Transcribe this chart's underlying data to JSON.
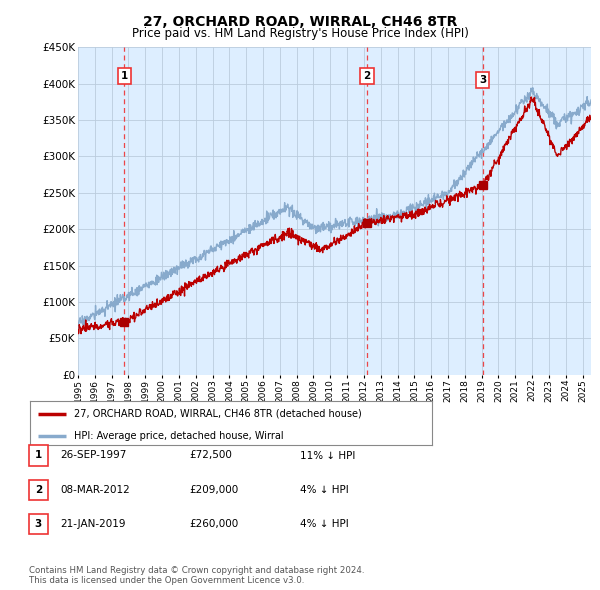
{
  "title": "27, ORCHARD ROAD, WIRRAL, CH46 8TR",
  "subtitle": "Price paid vs. HM Land Registry's House Price Index (HPI)",
  "ylim": [
    0,
    450000
  ],
  "yticks": [
    0,
    50000,
    100000,
    150000,
    200000,
    250000,
    300000,
    350000,
    400000,
    450000
  ],
  "ytick_labels": [
    "£0",
    "£50K",
    "£100K",
    "£150K",
    "£200K",
    "£250K",
    "£300K",
    "£350K",
    "£400K",
    "£450K"
  ],
  "sale_dates_decimal": [
    1997.74,
    2012.18,
    2019.06
  ],
  "sale_prices": [
    72500,
    209000,
    260000
  ],
  "sale_labels": [
    "1",
    "2",
    "3"
  ],
  "vline_color": "#ee3333",
  "dot_color": "#aa0000",
  "line_color_red": "#bb0000",
  "line_color_blue": "#88aacc",
  "chart_bg": "#ddeeff",
  "legend_label_red": "27, ORCHARD ROAD, WIRRAL, CH46 8TR (detached house)",
  "legend_label_blue": "HPI: Average price, detached house, Wirral",
  "table_entries": [
    {
      "label": "1",
      "date": "26-SEP-1997",
      "price": "£72,500",
      "hpi": "11% ↓ HPI"
    },
    {
      "label": "2",
      "date": "08-MAR-2012",
      "price": "£209,000",
      "hpi": "4% ↓ HPI"
    },
    {
      "label": "3",
      "date": "21-JAN-2019",
      "price": "£260,000",
      "hpi": "4% ↓ HPI"
    }
  ],
  "footer": "Contains HM Land Registry data © Crown copyright and database right 2024.\nThis data is licensed under the Open Government Licence v3.0.",
  "background_color": "#ffffff",
  "grid_color": "#bbccdd",
  "xlim_start": 1995.0,
  "xlim_end": 2025.5
}
